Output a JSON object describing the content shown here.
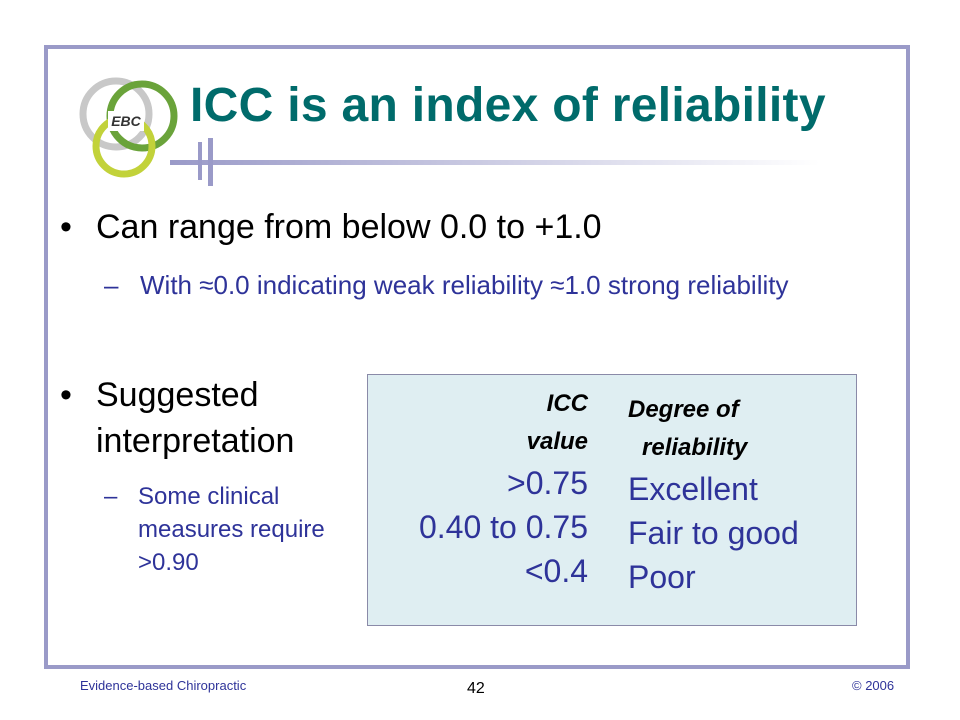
{
  "slide": {
    "title": "ICC is an index of reliability",
    "logo_text": "EBC",
    "bullets": [
      {
        "text": "Can range from below 0.0 to +1.0",
        "sub": "With ≈0.0 indicating weak reliability ≈1.0 strong reliability"
      },
      {
        "text": "Suggested interpretation",
        "sub": "Some clinical measures require ˃0.90"
      }
    ],
    "bullet_char": "•",
    "dash_char": "–"
  },
  "table": {
    "header_left": [
      "ICC",
      "value"
    ],
    "header_right": [
      "Degree of",
      "reliability"
    ],
    "rows": [
      {
        "icc": ">0.75",
        "degree": "Excellent"
      },
      {
        "icc": "0.40 to 0.75",
        "degree": "Fair to good"
      },
      {
        "icc": "<0.4",
        "degree": "Poor"
      }
    ]
  },
  "footer": {
    "left": "Evidence-based Chiropractic",
    "page": "42",
    "right": "© 2006"
  },
  "colors": {
    "title": "#006b6b",
    "frame": "#9a9ac8",
    "subtext": "#2e3399",
    "table_bg": "#dfeef2"
  }
}
